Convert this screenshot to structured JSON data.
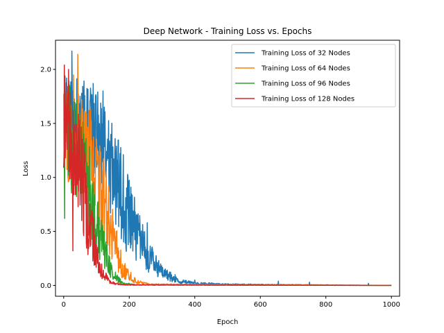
{
  "chart_data": {
    "type": "line",
    "title": "Deep Network - Training Loss vs. Epochs",
    "xlabel": "Epoch",
    "ylabel": "Loss",
    "xlim": [
      -25,
      1025
    ],
    "ylim": [
      -0.1,
      2.27
    ],
    "xticks": [
      0,
      200,
      400,
      600,
      800,
      1000
    ],
    "xtick_labels": [
      "0",
      "200",
      "400",
      "600",
      "800",
      "1000"
    ],
    "yticks": [
      0.0,
      0.5,
      1.0,
      1.5,
      2.0
    ],
    "ytick_labels": [
      "0.0",
      "0.5",
      "1.0",
      "1.5",
      "2.0"
    ],
    "grid": false,
    "legend_position": "top-right",
    "series": [
      {
        "name": "Training Loss of 32 Nodes",
        "color": "#1f77b4",
        "profile": [
          [
            0,
            1.5
          ],
          [
            50,
            1.52
          ],
          [
            100,
            1.4
          ],
          [
            150,
            1.05
          ],
          [
            200,
            0.62
          ],
          [
            250,
            0.3
          ],
          [
            300,
            0.12
          ],
          [
            350,
            0.04
          ],
          [
            400,
            0.02
          ],
          [
            500,
            0.01
          ],
          [
            1000,
            0.0
          ]
        ],
        "noise": 0.45,
        "spikes": [
          [
            25,
            2.17
          ],
          [
            90,
            1.87
          ],
          [
            120,
            1.8
          ],
          [
            210,
            0.6
          ],
          [
            255,
            0.58
          ],
          [
            340,
            0.1
          ],
          [
            400,
            0.05
          ],
          [
            655,
            0.04
          ],
          [
            750,
            0.03
          ],
          [
            930,
            0.02
          ]
        ]
      },
      {
        "name": "Training Loss of 64 Nodes",
        "color": "#ff7f0e",
        "profile": [
          [
            0,
            1.4
          ],
          [
            40,
            1.35
          ],
          [
            80,
            1.2
          ],
          [
            120,
            0.8
          ],
          [
            150,
            0.45
          ],
          [
            180,
            0.15
          ],
          [
            220,
            0.04
          ],
          [
            260,
            0.01
          ],
          [
            1000,
            0.0
          ]
        ],
        "noise": 0.45,
        "spikes": [
          [
            43,
            2.14
          ],
          [
            30,
            1.95
          ],
          [
            160,
            0.5
          ],
          [
            200,
            0.05
          ]
        ]
      },
      {
        "name": "Training Loss of 96 Nodes",
        "color": "#2ca02c",
        "profile": [
          [
            0,
            1.3
          ],
          [
            30,
            1.3
          ],
          [
            60,
            1.1
          ],
          [
            90,
            0.7
          ],
          [
            120,
            0.35
          ],
          [
            150,
            0.1
          ],
          [
            180,
            0.02
          ],
          [
            220,
            0.005
          ],
          [
            1000,
            0.0
          ]
        ],
        "noise": 0.45,
        "spikes": [
          [
            3,
            0.62
          ],
          [
            18,
            1.85
          ],
          [
            40,
            1.72
          ]
        ]
      },
      {
        "name": "Training Loss of 128 Nodes",
        "color": "#d62728",
        "profile": [
          [
            0,
            1.5
          ],
          [
            20,
            1.4
          ],
          [
            50,
            1.1
          ],
          [
            80,
            0.55
          ],
          [
            110,
            0.15
          ],
          [
            140,
            0.03
          ],
          [
            180,
            0.005
          ],
          [
            1000,
            0.0
          ]
        ],
        "noise": 0.45,
        "spikes": [
          [
            2,
            2.04
          ],
          [
            28,
            0.32
          ],
          [
            15,
            2.0
          ]
        ]
      }
    ]
  }
}
